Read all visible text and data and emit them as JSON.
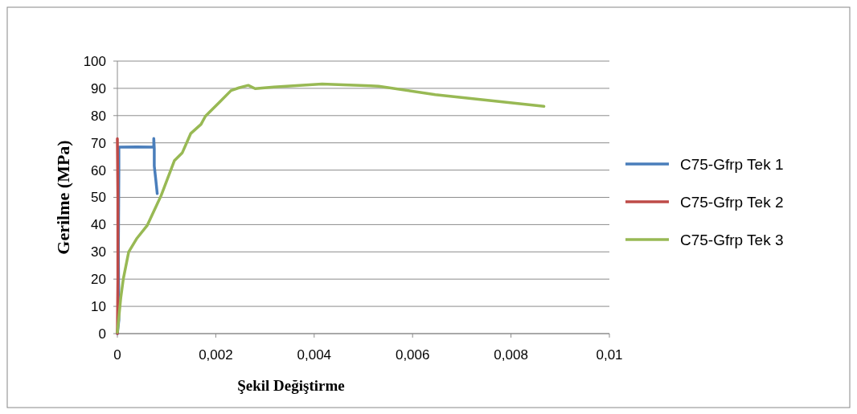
{
  "chart_data": {
    "type": "line",
    "xlabel": "Şekil Değiştirme",
    "ylabel": "Gerilme (MPa)",
    "xlim": [
      0,
      0.01
    ],
    "xticks": [
      {
        "value": 0,
        "label": "0"
      },
      {
        "value": 0.002,
        "label": "0,002"
      },
      {
        "value": 0.004,
        "label": "0,004"
      },
      {
        "value": 0.006,
        "label": "0,006"
      },
      {
        "value": 0.008,
        "label": "0,008"
      },
      {
        "value": 0.01,
        "label": "0,01"
      }
    ],
    "ylim": [
      0,
      100
    ],
    "yticks": [
      0,
      10,
      20,
      30,
      40,
      50,
      60,
      70,
      80,
      90,
      100
    ],
    "grid": "y",
    "legend": "right",
    "line_style": "solid",
    "marker": "none",
    "series": [
      {
        "name": "C75-Gfrp Tek 1",
        "color": "#4a7ebb",
        "x": [
          0,
          3e-05,
          2e-05,
          3e-05,
          3e-05,
          0.0004,
          0.00074,
          0.00074,
          0.00075,
          0.00075,
          0.00078,
          0.00081
        ],
        "values": [
          0,
          5,
          30,
          60,
          68.4,
          68.5,
          68.4,
          71.6,
          68,
          61.5,
          56.6,
          51.4
        ]
      },
      {
        "name": "C75-Gfrp Tek 2",
        "color": "#be4b48",
        "x": [
          0,
          1e-05,
          1e-05,
          0
        ],
        "values": [
          0,
          20,
          50,
          71.5
        ]
      },
      {
        "name": "C75-Gfrp Tek 3",
        "color": "#98b954",
        "x": [
          0,
          7e-05,
          0.00012,
          0.00023,
          0.00039,
          0.00061,
          0.00089,
          0.00116,
          0.00132,
          0.00149,
          0.0017,
          0.00179,
          0.00209,
          0.00231,
          0.00247,
          0.00266,
          0.0028,
          0.00318,
          0.00416,
          0.00515,
          0.00531,
          0.00646,
          0.00867
        ],
        "values": [
          0.5,
          13.3,
          20,
          30,
          34.8,
          39.8,
          50.7,
          63.5,
          66.4,
          73.4,
          76.8,
          79.8,
          85.2,
          89.2,
          90.2,
          91.1,
          89.9,
          90.5,
          91.6,
          90.9,
          90.8,
          87.7,
          83.4
        ]
      }
    ]
  }
}
